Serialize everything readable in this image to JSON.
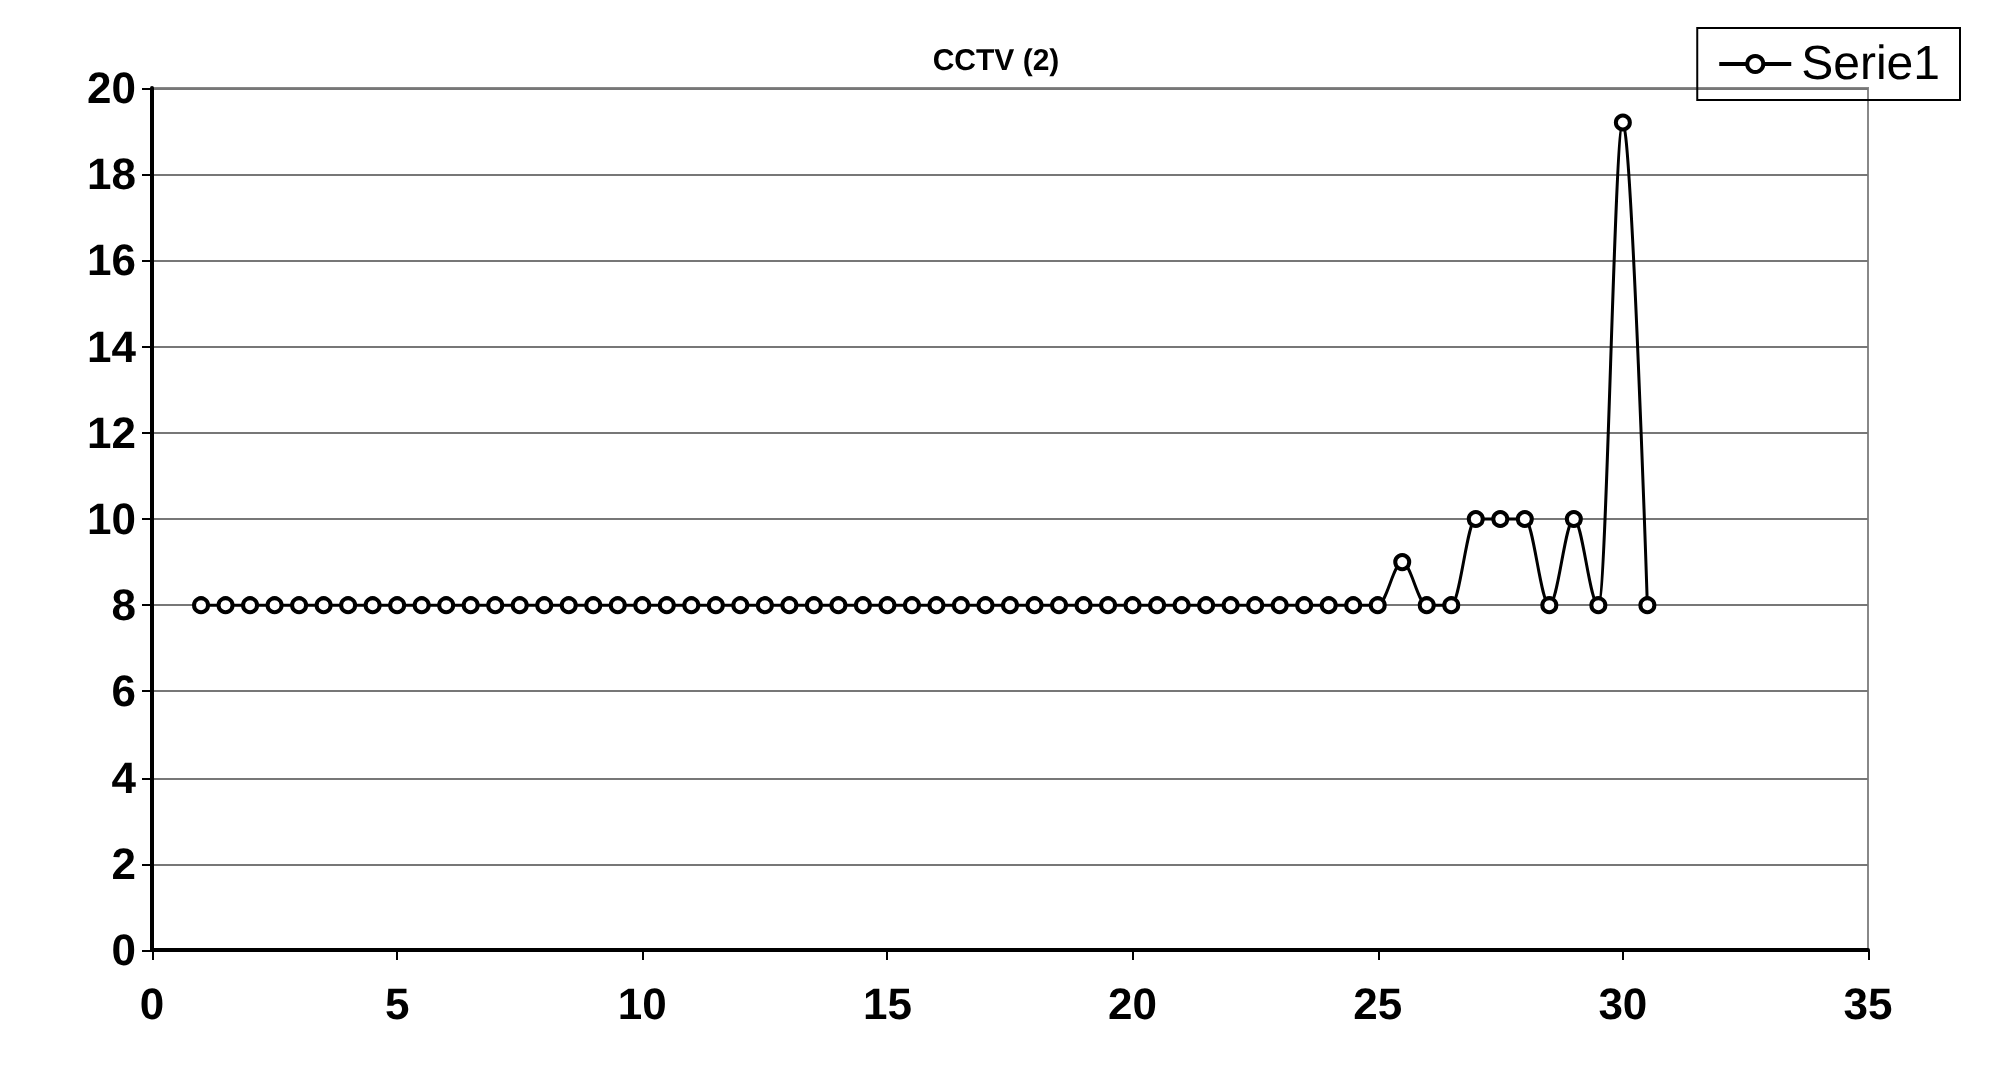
{
  "chart_data": {
    "type": "line",
    "title": "CCTV (2)",
    "x": [
      1,
      1.5,
      2,
      2.5,
      3,
      3.5,
      4,
      4.5,
      5,
      5.5,
      6,
      6.5,
      7,
      7.5,
      8,
      8.5,
      9,
      9.5,
      10,
      10.5,
      11,
      11.5,
      12,
      12.5,
      13,
      13.5,
      14,
      14.5,
      15,
      15.5,
      16,
      16.5,
      17,
      17.5,
      18,
      18.5,
      19,
      19.5,
      20,
      20.5,
      21,
      21.5,
      22,
      22.5,
      23,
      23.5,
      24,
      24.5,
      25,
      25.5,
      26,
      26.5,
      27,
      27.5,
      28,
      28.5,
      29,
      29.5,
      30,
      30.5
    ],
    "series": [
      {
        "name": "Serie1",
        "color": "#000000",
        "values": [
          8,
          8,
          8,
          8,
          8,
          8,
          8,
          8,
          8,
          8,
          8,
          8,
          8,
          8,
          8,
          8,
          8,
          8,
          8,
          8,
          8,
          8,
          8,
          8,
          8,
          8,
          8,
          8,
          8,
          8,
          8,
          8,
          8,
          8,
          8,
          8,
          8,
          8,
          8,
          8,
          8,
          8,
          8,
          8,
          8,
          8,
          8,
          8,
          8,
          9,
          8,
          8,
          10,
          10,
          10,
          8,
          10,
          8,
          19.2,
          8
        ]
      }
    ],
    "xlim": [
      0,
      35
    ],
    "xticks": [
      0,
      5,
      10,
      15,
      20,
      25,
      30,
      35
    ],
    "ylim": [
      0,
      20
    ],
    "yticks": [
      0,
      2,
      4,
      6,
      8,
      10,
      12,
      14,
      16,
      18,
      20
    ],
    "grid": "y",
    "legend": "top right",
    "marker": "circle",
    "line_style": "solid"
  }
}
